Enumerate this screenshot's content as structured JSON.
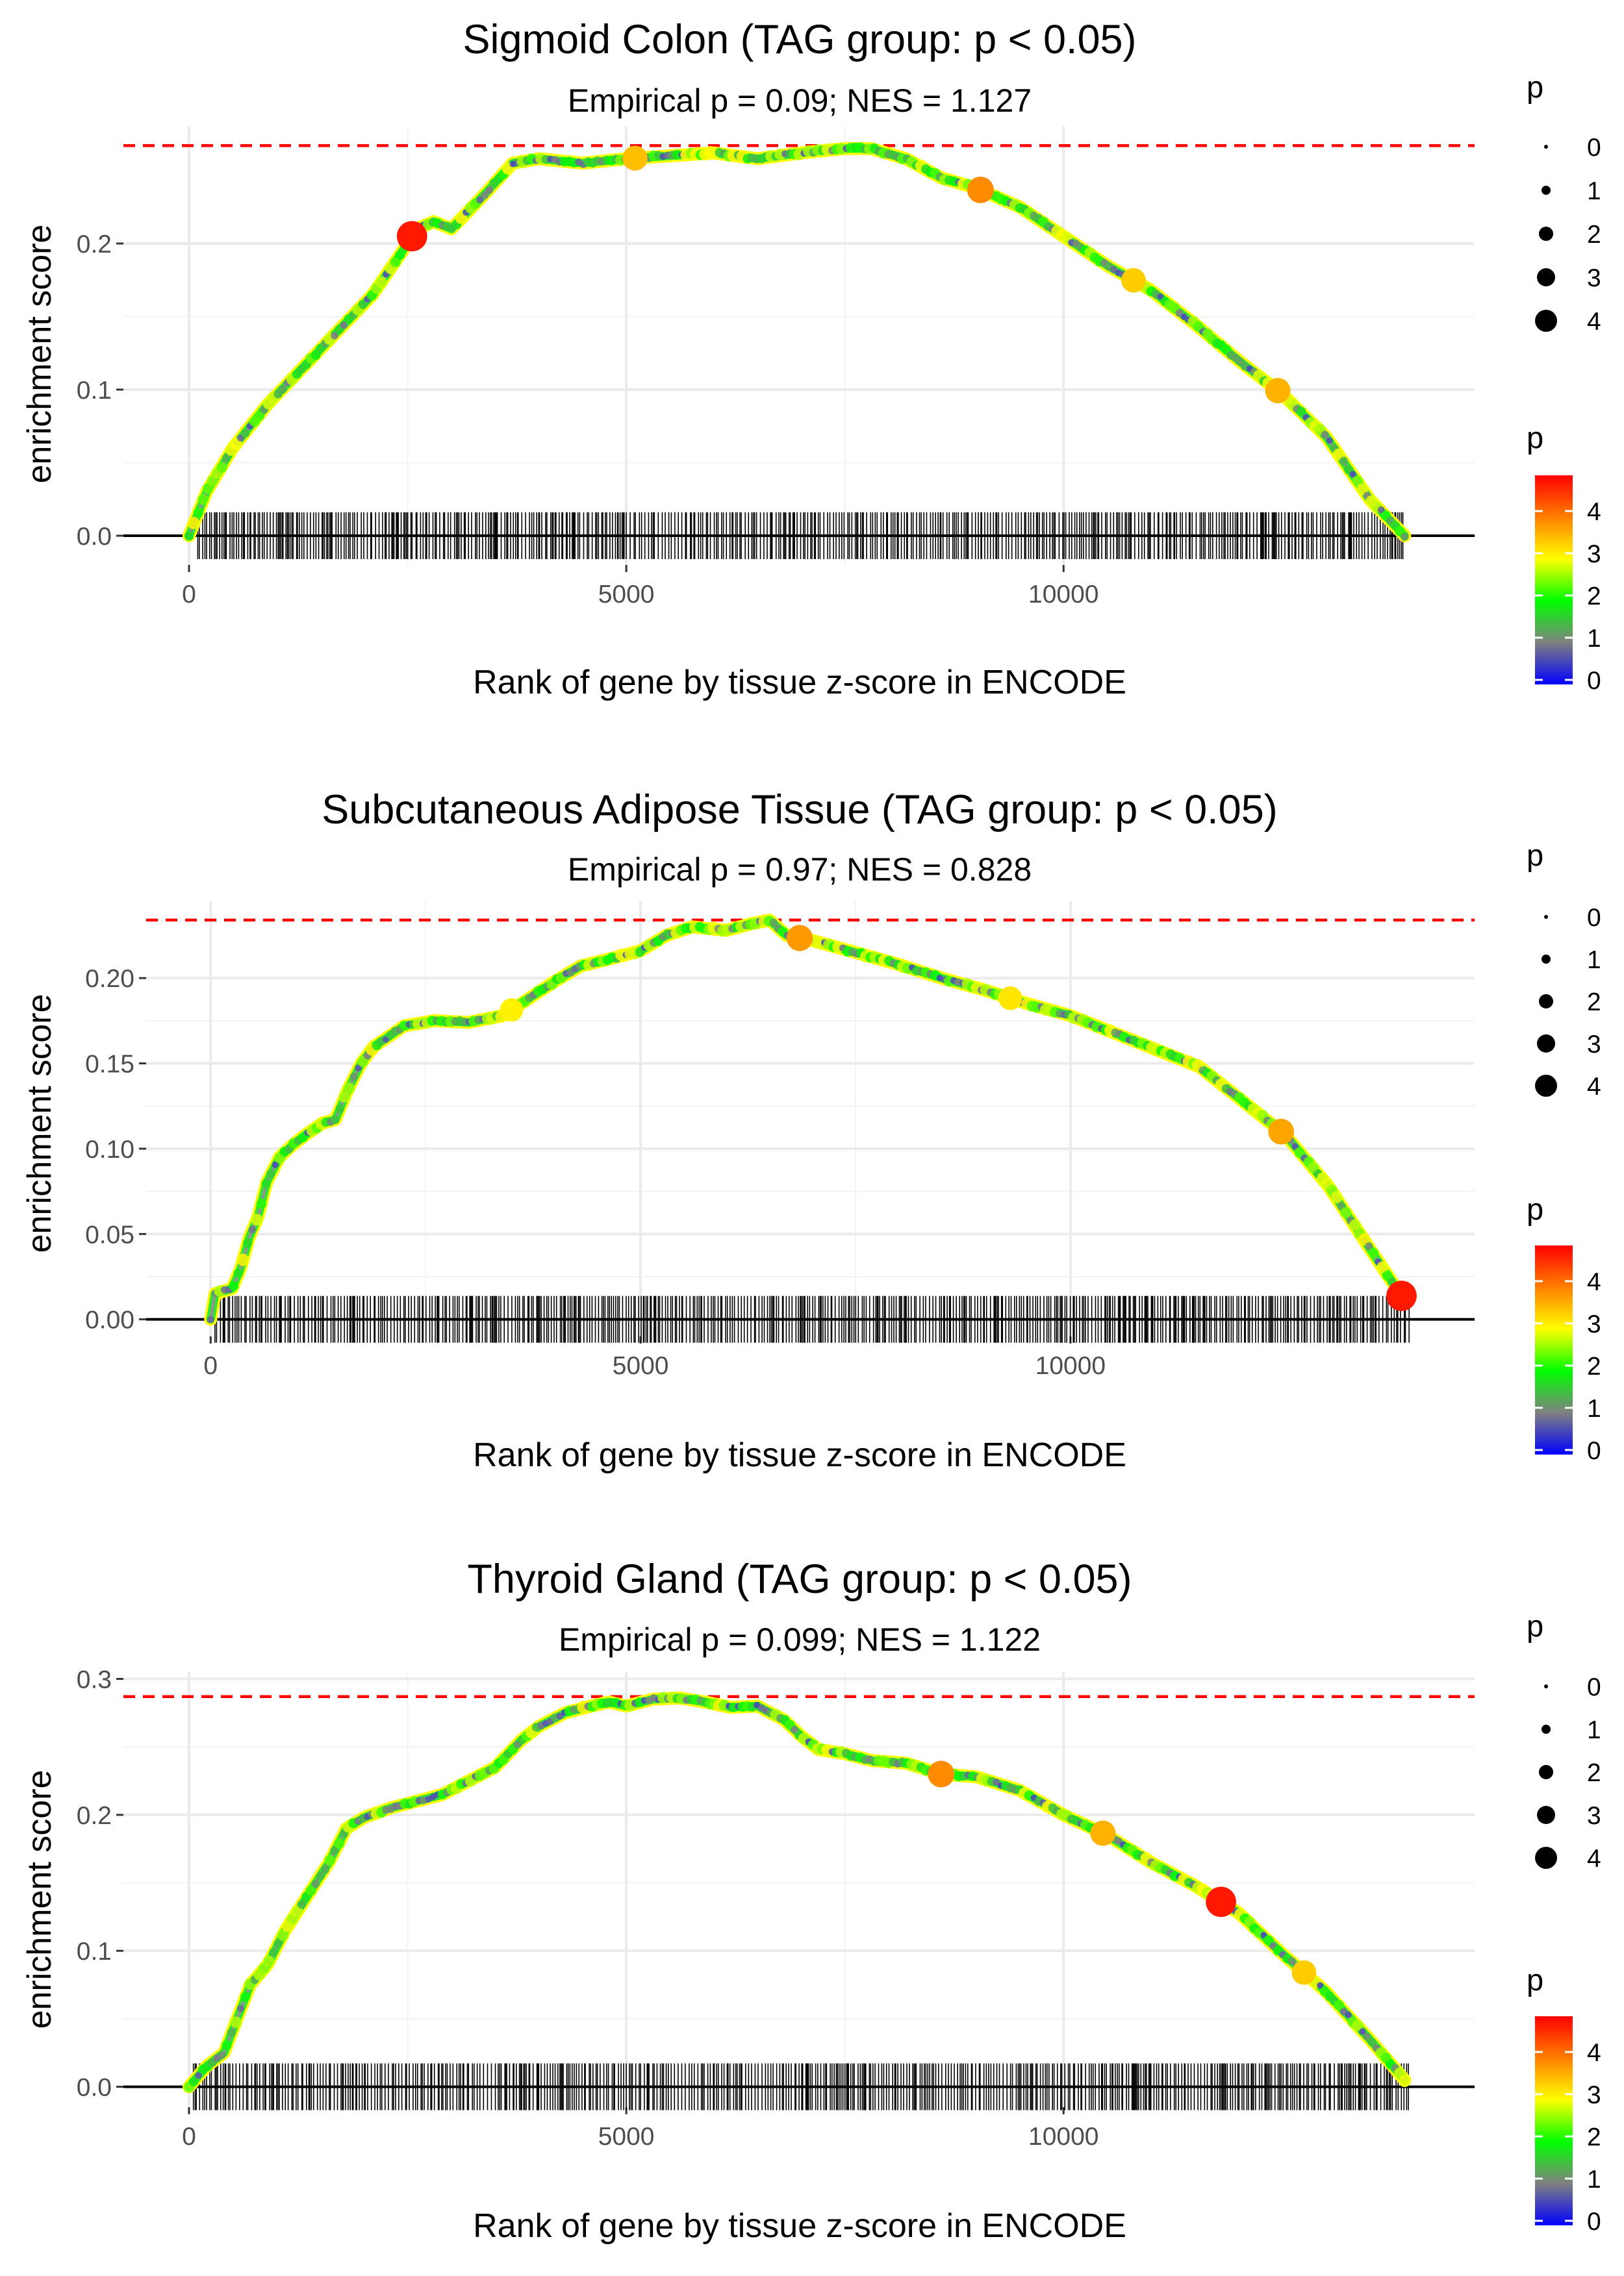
{
  "figure": {
    "xlabel": "Rank of gene by tissue z-score in ENCODE",
    "ylabel": "enrichment score",
    "legend_size_title": "p",
    "legend_color_title": "p"
  },
  "chart_data": [
    {
      "type": "line",
      "title": "Sigmoid Colon (TAG group: p < 0.05)",
      "subtitle": "Empirical p = 0.09; NES = 1.127",
      "xlabel": "Rank of gene by tissue z-score in ENCODE",
      "ylabel": "enrichment score",
      "xlim": [
        -750,
        14700
      ],
      "ylim": [
        -0.02,
        0.28
      ],
      "x_ticks": [
        0,
        5000,
        10000
      ],
      "x_tick_labels": [
        "0",
        "5000",
        "10000"
      ],
      "y_ticks": [
        0.0,
        0.1,
        0.2
      ],
      "y_tick_labels": [
        "0.0",
        "0.1",
        "0.2"
      ],
      "max_es": 0.267,
      "n_genes": 14000,
      "curve": {
        "x": [
          0,
          200,
          500,
          900,
          1300,
          1700,
          2100,
          2500,
          2600,
          2800,
          3000,
          3400,
          3700,
          4000,
          4500,
          5000,
          5500,
          6000,
          6500,
          7000,
          7500,
          7800,
          8200,
          8600,
          9000,
          9500,
          10000,
          10500,
          11000,
          11500,
          12000,
          12500,
          13000,
          13500,
          13900
        ],
        "y": [
          0.0,
          0.03,
          0.06,
          0.09,
          0.115,
          0.14,
          0.165,
          0.2,
          0.21,
          0.215,
          0.21,
          0.235,
          0.255,
          0.258,
          0.255,
          0.258,
          0.26,
          0.262,
          0.258,
          0.262,
          0.265,
          0.265,
          0.258,
          0.245,
          0.238,
          0.225,
          0.205,
          0.185,
          0.168,
          0.145,
          0.12,
          0.097,
          0.068,
          0.025,
          0.0
        ]
      },
      "highlight_points": [
        {
          "x": 2550,
          "p": 4.8
        },
        {
          "x": 5100,
          "p": 3.5
        },
        {
          "x": 9050,
          "p": 3.9
        },
        {
          "x": 10800,
          "p": 3.4
        },
        {
          "x": 12450,
          "p": 3.6
        }
      ],
      "gene_ticks": {
        "start": 100,
        "end": 13900
      }
    },
    {
      "type": "line",
      "title": "Subcutaneous Adipose Tissue (TAG group: p < 0.05)",
      "subtitle": "Empirical p = 0.97; NES = 0.828",
      "xlabel": "Rank of gene by tissue z-score in ENCODE",
      "ylabel": "enrichment score",
      "xlim": [
        -750,
        14700
      ],
      "ylim": [
        -0.01,
        0.245
      ],
      "x_ticks": [
        0,
        5000,
        10000
      ],
      "x_tick_labels": [
        "0",
        "5000",
        "10000"
      ],
      "y_ticks": [
        0.0,
        0.05,
        0.1,
        0.15,
        0.2
      ],
      "y_tick_labels": [
        "0.00",
        "0.05",
        "0.10",
        "0.15",
        "0.20"
      ],
      "max_es": 0.234,
      "n_genes": 14000,
      "curve": {
        "x": [
          0,
          50,
          250,
          350,
          450,
          550,
          650,
          800,
          950,
          1100,
          1300,
          1450,
          1600,
          1750,
          1900,
          2050,
          2250,
          2600,
          3000,
          3400,
          3700,
          4000,
          4300,
          4700,
          5000,
          5300,
          5600,
          6000,
          6300,
          6500,
          6700,
          7000,
          7500,
          8000,
          8500,
          9000,
          9500,
          10000,
          10500,
          11000,
          11500,
          12000,
          12500,
          13000,
          13500,
          13900
        ],
        "y": [
          0.0,
          0.015,
          0.018,
          0.03,
          0.048,
          0.06,
          0.08,
          0.095,
          0.102,
          0.108,
          0.115,
          0.117,
          0.135,
          0.15,
          0.16,
          0.165,
          0.172,
          0.175,
          0.174,
          0.178,
          0.188,
          0.198,
          0.207,
          0.212,
          0.216,
          0.225,
          0.23,
          0.228,
          0.232,
          0.234,
          0.225,
          0.222,
          0.215,
          0.208,
          0.2,
          0.193,
          0.185,
          0.178,
          0.168,
          0.158,
          0.148,
          0.128,
          0.108,
          0.078,
          0.04,
          0.01
        ]
      },
      "highlight_points": [
        {
          "x": 3500,
          "p": 3.1
        },
        {
          "x": 6850,
          "p": 3.8
        },
        {
          "x": 9300,
          "p": 3.2
        },
        {
          "x": 12450,
          "p": 3.7
        },
        {
          "x": 13850,
          "p": 4.8
        }
      ],
      "gene_ticks": {
        "start": 50,
        "end": 13950
      }
    },
    {
      "type": "line",
      "title": "Thyroid Gland (TAG group: p < 0.05)",
      "subtitle": "Empirical p = 0.099; NES = 1.122",
      "xlabel": "Rank of gene by tissue z-score in ENCODE",
      "ylabel": "enrichment score",
      "xlim": [
        -750,
        14700
      ],
      "ylim": [
        -0.015,
        0.305
      ],
      "x_ticks": [
        0,
        5000,
        10000
      ],
      "x_tick_labels": [
        "0",
        "5000",
        "10000"
      ],
      "y_ticks": [
        0.0,
        0.1,
        0.2,
        0.3
      ],
      "y_tick_labels": [
        "0.0",
        "0.1",
        "0.2",
        "0.3"
      ],
      "max_es": 0.287,
      "n_genes": 14000,
      "curve": {
        "x": [
          0,
          200,
          400,
          550,
          700,
          900,
          1100,
          1350,
          1600,
          1800,
          2000,
          2300,
          2600,
          2900,
          3200,
          3500,
          3800,
          4000,
          4300,
          4600,
          4800,
          5000,
          5300,
          5600,
          5900,
          6200,
          6500,
          6800,
          7000,
          7200,
          7500,
          7800,
          8200,
          8600,
          9000,
          9500,
          10000,
          10500,
          11000,
          11500,
          12000,
          12500,
          13000,
          13500,
          13900
        ],
        "y": [
          0.0,
          0.015,
          0.025,
          0.05,
          0.075,
          0.09,
          0.115,
          0.14,
          0.165,
          0.19,
          0.198,
          0.205,
          0.21,
          0.215,
          0.225,
          0.235,
          0.255,
          0.265,
          0.275,
          0.28,
          0.283,
          0.28,
          0.285,
          0.286,
          0.283,
          0.279,
          0.28,
          0.27,
          0.258,
          0.248,
          0.245,
          0.24,
          0.238,
          0.23,
          0.228,
          0.218,
          0.2,
          0.185,
          0.165,
          0.148,
          0.128,
          0.098,
          0.07,
          0.035,
          0.005
        ]
      },
      "highlight_points": [
        {
          "x": 8600,
          "p": 3.9
        },
        {
          "x": 10450,
          "p": 3.6
        },
        {
          "x": 11800,
          "p": 4.8
        },
        {
          "x": 12750,
          "p": 3.4
        }
      ],
      "gene_ticks": {
        "start": 50,
        "end": 13950
      }
    }
  ],
  "legends": [
    {
      "size_title": "p",
      "size_labels": [
        "0",
        "1",
        "2",
        "3",
        "4"
      ],
      "color_title": "p",
      "color_labels": [
        "0",
        "1",
        "2",
        "3",
        "4"
      ]
    },
    {
      "size_title": "p",
      "size_labels": [
        "0",
        "1",
        "2",
        "3",
        "4"
      ],
      "color_title": "p",
      "color_labels": [
        "0",
        "1",
        "2",
        "3",
        "4"
      ]
    },
    {
      "size_title": "p",
      "size_labels": [
        "0",
        "1",
        "2",
        "3",
        "4"
      ],
      "color_title": "p",
      "color_labels": [
        "0",
        "1",
        "2",
        "3",
        "4"
      ]
    }
  ],
  "colors": {
    "gradient": [
      "#0000ff",
      "#808080",
      "#00ff00",
      "#ffff00",
      "#ff7f00",
      "#ff0000"
    ],
    "max_line": "#ff0000",
    "grid": "#ebebeb",
    "gene_tick": "#000000"
  }
}
